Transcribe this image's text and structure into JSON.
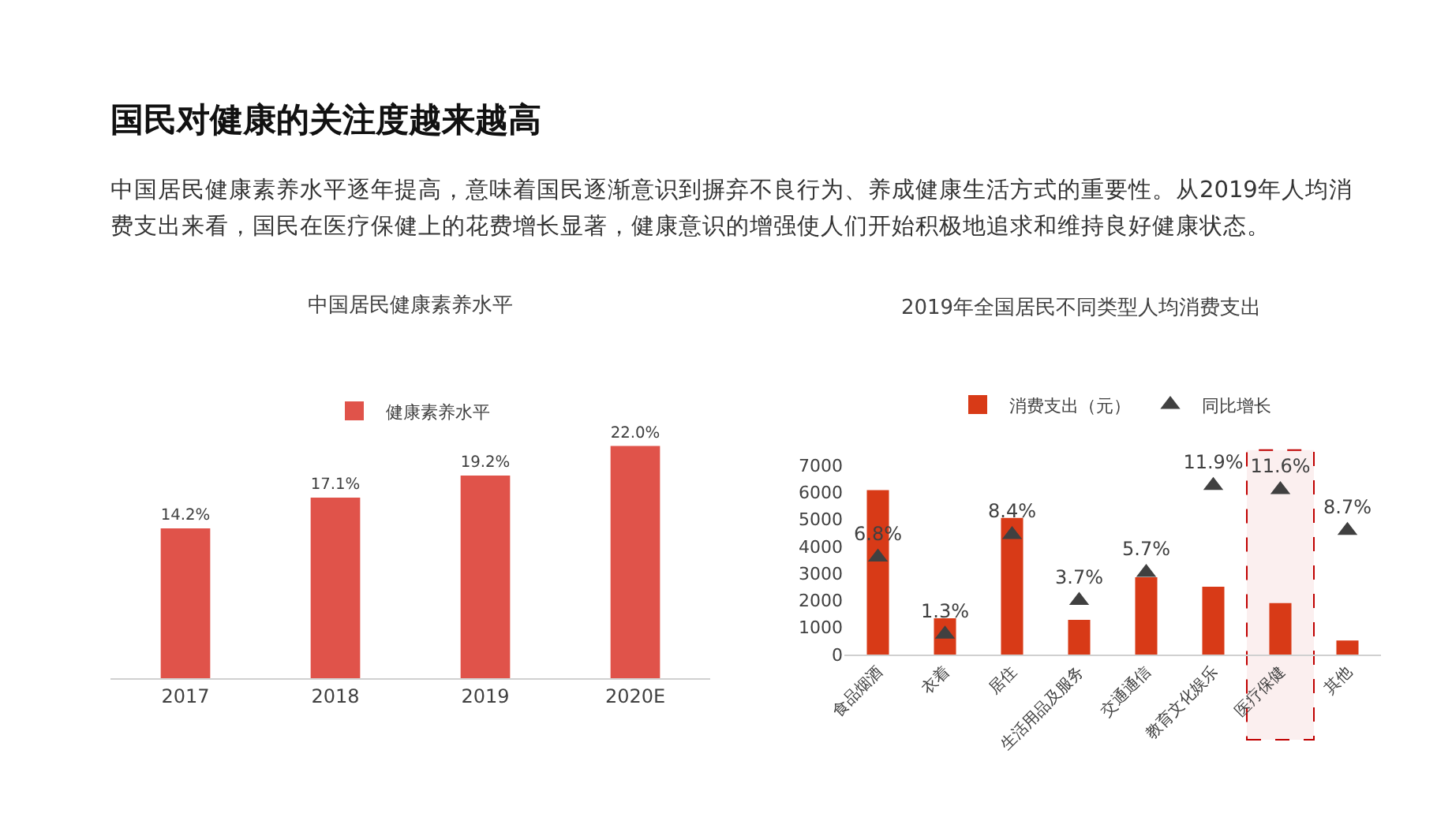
{
  "chart_data": [
    {
      "type": "other",
      "title": "国民对健康的关注度越来越高",
      "subtitle": "中国居民健康素养水平逐年提高，意味着国民逐渐意识到摒弃不良行为、养成健康生活方式的重要性。从2019年人均消费支出来看，国民在医疗保健上的花费增长显著，健康意识的增强使人们开始积极地追求和维持良好健康状态。"
    },
    {
      "type": "bar",
      "title": "中国居民健康素养水平",
      "categories": [
        "2017",
        "2018",
        "2019",
        "2020E"
      ],
      "series": [
        {
          "name": "健康素养水平",
          "color": "#e0534a",
          "values": [
            14.2,
            17.1,
            19.2,
            22.0
          ],
          "value_labels": [
            "14.2%",
            "17.1%",
            "19.2%",
            "22.0%"
          ]
        }
      ],
      "tick_labels": "x",
      "grid": false,
      "legend": "top"
    },
    {
      "type": "bar",
      "title": "2019年全国居民不同类型人均消费支出",
      "categories": [
        "食品烟酒",
        "衣着",
        "居住",
        "生活用品及服务",
        "交通通信",
        "教育文化娱乐",
        "医疗保健",
        "其他"
      ],
      "series": [
        {
          "name": "消费支出（元）",
          "color": "#d83a17",
          "values": [
            6080,
            1340,
            5050,
            1280,
            2860,
            2510,
            1900,
            520
          ]
        },
        {
          "name": "同比增长",
          "type": "scatter",
          "axis": "y2",
          "marker": "triangle",
          "color": "#404040",
          "values": [
            6.8,
            1.3,
            8.4,
            3.7,
            5.7,
            11.9,
            11.6,
            8.7
          ],
          "value_labels": [
            "6.8%",
            "1.3%",
            "8.4%",
            "3.7%",
            "5.7%",
            "11.9%",
            "11.6%",
            "8.7%"
          ]
        }
      ],
      "ylim": [
        0,
        7000
      ],
      "yticks": [
        0,
        1000,
        2000,
        3000,
        4000,
        5000,
        6000,
        7000
      ],
      "tick_labels": "xy",
      "grid": false,
      "legend": "top",
      "bands": [
        {
          "axis": "x",
          "from": "医疗保健",
          "to": "医疗保健",
          "color": "#c00000"
        }
      ]
    }
  ]
}
